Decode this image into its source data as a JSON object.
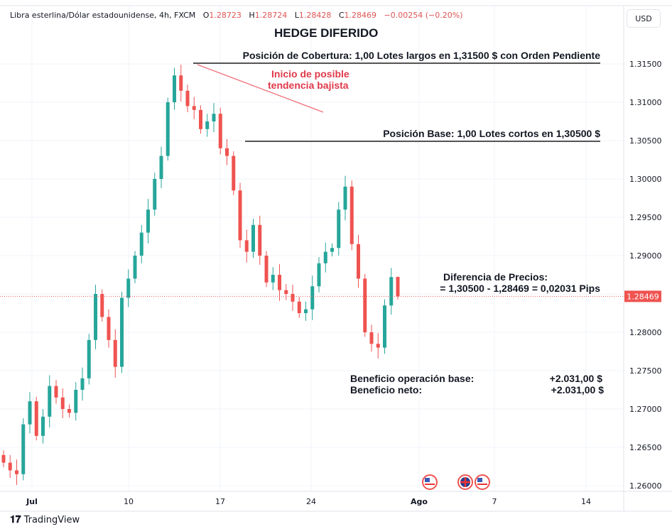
{
  "legend": {
    "symbol": "Libra esterlina/Dólar estadounidense, 4h, FXCM",
    "o_label": "O",
    "o": "1.28723",
    "h_label": "H",
    "h": "1.28724",
    "l_label": "L",
    "l": "1.28428",
    "c_label": "C",
    "c": "1.28469",
    "change": "−0.00254 (−0.20%)"
  },
  "currency_button": "USD",
  "annotations": {
    "title": "HEDGE DIFERIDO",
    "cobertura": "Posición de Cobertura: 1,00 Lotes largos en 1,31500 $ con Orden Pendiente",
    "trend_line1": "Inicio de posible",
    "trend_line2": "tendencia bajista",
    "base": "Posición Base: 1,00 Lotes cortos en 1,30500 $",
    "diff1": "Diferencia de Precios:",
    "diff2": "= 1,30500 - 1,28469 = 0,02031 Pips",
    "benefit_base_label": "Beneficio operación base:",
    "benefit_base_value": "+2.031,00 $",
    "benefit_net_label": "Beneficio neto:",
    "benefit_net_value": "+2.031,00 $"
  },
  "branding": "TradingView",
  "colors": {
    "up": "#26a69a",
    "down": "#ef5350",
    "trend": "#f06f7a",
    "level": "#555555",
    "accent_text": "#e0394a"
  },
  "chart_data": {
    "type": "candlestick",
    "title": "Libra esterlina/Dólar estadounidense, 4h, FXCM",
    "ylim": [
      1.2595,
      1.3185
    ],
    "y_ticks": [
      "1.31500",
      "1.31000",
      "1.30500",
      "1.30000",
      "1.29500",
      "1.29000",
      "1.28500",
      "1.28000",
      "1.27500",
      "1.27000",
      "1.26500",
      "1.26000"
    ],
    "y_tick_values": [
      1.315,
      1.31,
      1.305,
      1.3,
      1.295,
      1.29,
      1.285,
      1.28,
      1.275,
      1.27,
      1.265,
      1.26
    ],
    "x_ticks": [
      "Jul",
      "10",
      "17",
      "24",
      "Ago",
      "7",
      "14"
    ],
    "current_price": "1.28469",
    "first_open": 1.264,
    "closes": [
      1.263,
      1.262,
      1.2615,
      1.268,
      1.271,
      1.2665,
      1.269,
      1.273,
      1.2715,
      1.27,
      1.2695,
      1.2725,
      1.274,
      1.279,
      1.285,
      1.282,
      1.279,
      1.2755,
      1.2845,
      1.287,
      1.29,
      1.293,
      1.296,
      1.3,
      1.303,
      1.31,
      1.3135,
      1.3115,
      1.3095,
      1.309,
      1.3065,
      1.3075,
      1.3085,
      1.304,
      1.303,
      1.2985,
      1.292,
      1.2905,
      1.294,
      1.29,
      1.2865,
      1.2875,
      1.2855,
      1.285,
      1.284,
      1.2825,
      1.283,
      1.286,
      1.289,
      1.2905,
      1.291,
      1.296,
      1.299,
      1.2915,
      1.287,
      1.28,
      1.2785,
      1.278,
      1.2835,
      1.2872,
      1.28469
    ],
    "last_candle": {
      "o": 1.28723,
      "h": 1.28724,
      "l": 1.28428,
      "c": 1.28469
    },
    "levels": [
      {
        "name": "cobertura",
        "price": 1.315
      },
      {
        "name": "base",
        "price": 1.305
      }
    ]
  }
}
